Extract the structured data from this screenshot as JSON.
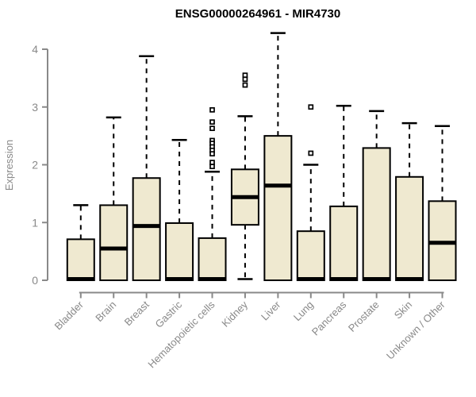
{
  "title": "ENSG00000264961 - MIR4730",
  "colors": {
    "background": "#ffffff",
    "box_fill": "#EFE9D0",
    "box_stroke": "#000000",
    "median": "#000000",
    "whisker": "#000000",
    "outlier_fill": "#ffffff",
    "axis": "#898989",
    "tick_label": "#898989",
    "title_color": "#000000"
  },
  "chart_data": {
    "type": "boxplot",
    "title": "ENSG00000264961 - MIR4730",
    "xlabel": "",
    "ylabel": "Expression",
    "ylim": [
      0,
      4.4
    ],
    "yticks": [
      0,
      1,
      2,
      3,
      4
    ],
    "grid": false,
    "legend": "none",
    "categories": [
      "Bladder",
      "Brain",
      "Breast",
      "Gastric",
      "Hematopoietic cells",
      "Kidney",
      "Liver",
      "Lung",
      "Pancreas",
      "Prostate",
      "Skin",
      "Unknown / Other"
    ],
    "series": [
      {
        "name": "Bladder",
        "whisker_low": 0,
        "q1": 0,
        "median": 0.02,
        "q3": 0.71,
        "whisker_high": 1.3,
        "outliers": []
      },
      {
        "name": "Brain",
        "whisker_low": 0,
        "q1": 0,
        "median": 0.55,
        "q3": 1.3,
        "whisker_high": 2.82,
        "outliers": []
      },
      {
        "name": "Breast",
        "whisker_low": 0,
        "q1": 0,
        "median": 0.94,
        "q3": 1.77,
        "whisker_high": 3.88,
        "outliers": []
      },
      {
        "name": "Gastric",
        "whisker_low": 0,
        "q1": 0,
        "median": 0.02,
        "q3": 0.99,
        "whisker_high": 2.43,
        "outliers": []
      },
      {
        "name": "Hematopoietic cells",
        "whisker_low": 0,
        "q1": 0,
        "median": 0.02,
        "q3": 0.73,
        "whisker_high": 1.88,
        "outliers": [
          2.95,
          2.74,
          2.63,
          2.42,
          2.37,
          2.31,
          2.25,
          2.19,
          2.04,
          1.97
        ]
      },
      {
        "name": "Kidney",
        "whisker_low": 0.02,
        "q1": 0.96,
        "median": 1.44,
        "q3": 1.92,
        "whisker_high": 2.84,
        "outliers": [
          3.55,
          3.48,
          3.38
        ]
      },
      {
        "name": "Liver",
        "whisker_low": 0,
        "q1": 0,
        "median": 1.64,
        "q3": 2.5,
        "whisker_high": 4.28,
        "outliers": []
      },
      {
        "name": "Lung",
        "whisker_low": 0,
        "q1": 0,
        "median": 0.02,
        "q3": 0.85,
        "whisker_high": 2.0,
        "outliers": [
          3.0,
          2.2
        ]
      },
      {
        "name": "Pancreas",
        "whisker_low": 0,
        "q1": 0,
        "median": 0.02,
        "q3": 1.28,
        "whisker_high": 3.02,
        "outliers": []
      },
      {
        "name": "Prostate",
        "whisker_low": 0,
        "q1": 0,
        "median": 0.02,
        "q3": 2.29,
        "whisker_high": 2.93,
        "outliers": []
      },
      {
        "name": "Skin",
        "whisker_low": 0,
        "q1": 0,
        "median": 0.02,
        "q3": 1.79,
        "whisker_high": 2.72,
        "outliers": []
      },
      {
        "name": "Unknown / Other",
        "whisker_low": 0,
        "q1": 0,
        "median": 0.65,
        "q3": 1.37,
        "whisker_high": 2.67,
        "outliers": []
      }
    ]
  }
}
